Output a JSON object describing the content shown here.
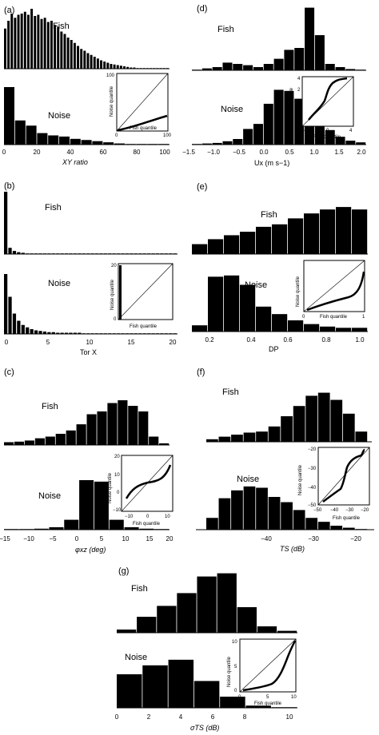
{
  "chart_data": [
    {
      "panel": "(a)",
      "type": "bar",
      "xlabel": "XY ratio",
      "xlim": [
        0,
        100
      ],
      "xticks": [
        "0",
        "20",
        "40",
        "60",
        "80",
        "100"
      ],
      "series": [
        {
          "name": "Fish",
          "values": [
            0.67,
            0.8,
            0.92,
            0.85,
            0.9,
            0.92,
            0.95,
            0.9,
            1.0,
            0.88,
            0.9,
            0.83,
            0.85,
            0.78,
            0.8,
            0.73,
            0.7,
            0.62,
            0.58,
            0.52,
            0.48,
            0.43,
            0.38,
            0.33,
            0.3,
            0.26,
            0.23,
            0.2,
            0.17,
            0.14,
            0.12,
            0.1,
            0.08,
            0.07,
            0.06,
            0.05,
            0.04,
            0.03,
            0.02,
            0.02,
            0.01,
            0.01,
            0.01,
            0.01,
            0.01,
            0.01,
            0.01,
            0.01,
            0.01,
            0.01
          ]
        },
        {
          "name": "Noise",
          "values": [
            1.0,
            0.42,
            0.33,
            0.2,
            0.16,
            0.14,
            0.1,
            0.08,
            0.06,
            0.04,
            0.02,
            0.01,
            0.01,
            0.01,
            0.01
          ]
        }
      ],
      "inset": {
        "xlabel": "Fish quantile",
        "ylabel": "Noise quantile",
        "xticks": [
          "0",
          "100"
        ],
        "yticks": [
          "100"
        ]
      }
    },
    {
      "panel": "(b)",
      "type": "bar",
      "xlabel": "Tor X",
      "xlim": [
        0,
        20
      ],
      "xticks": [
        "0",
        "5",
        "10",
        "15",
        "20"
      ],
      "series": [
        {
          "name": "Fish",
          "values": [
            1.0,
            0.1,
            0.05,
            0.03,
            0.02,
            0.01,
            0.01,
            0.01,
            0.01,
            0.01,
            0.01,
            0.01,
            0.01,
            0.01,
            0.01,
            0.01,
            0.01,
            0.01,
            0.01,
            0.01,
            0.01,
            0.01,
            0.01,
            0.01,
            0.01,
            0.01,
            0.01,
            0.01,
            0.01,
            0.01,
            0.01,
            0.01,
            0.01,
            0.01,
            0.01,
            0.01,
            0.01,
            0.01,
            0.01,
            0.01
          ]
        },
        {
          "name": "Noise",
          "values": [
            1.0,
            0.62,
            0.34,
            0.22,
            0.15,
            0.11,
            0.08,
            0.06,
            0.05,
            0.04,
            0.03,
            0.03,
            0.02,
            0.02,
            0.02,
            0.02,
            0.02,
            0.02,
            0.01,
            0.01,
            0.01,
            0.01,
            0.01,
            0.01,
            0.01,
            0.01,
            0.01,
            0.01,
            0.01,
            0.01,
            0.01,
            0.01,
            0.01,
            0.01,
            0.01,
            0.01,
            0.01,
            0.01,
            0.01,
            0.01
          ]
        }
      ],
      "inset": {
        "xlabel": "Fish quantile",
        "ylabel": "Noise quantile",
        "xticks": [],
        "yticks": [
          "20",
          "0"
        ]
      }
    },
    {
      "panel": "(c)",
      "type": "bar",
      "xlabel": "φxz (deg)",
      "xlim": [
        -15,
        20
      ],
      "xticks": [
        "−15",
        "−10",
        "−5",
        "0",
        "5",
        "10",
        "15",
        "20"
      ],
      "series": [
        {
          "name": "Fish",
          "values": [
            0.05,
            0.06,
            0.08,
            0.12,
            0.15,
            0.2,
            0.26,
            0.37,
            0.55,
            0.6,
            0.75,
            0.8,
            0.7,
            0.6,
            0.15,
            0.03
          ]
        },
        {
          "name": "Noise",
          "values": [
            0.01,
            0.01,
            0.02,
            0.05,
            0.2,
            1.0,
            0.97,
            0.2,
            0.05,
            0.02,
            0.01
          ]
        }
      ],
      "inset": {
        "xlabel": "Fish quantile",
        "ylabel": "Noise quantile",
        "xticks": [
          "−10",
          "0",
          "10"
        ],
        "yticks": [
          "20",
          "10",
          "0",
          "−10"
        ]
      }
    },
    {
      "panel": "(d)",
      "type": "bar",
      "xlabel": "Ux (m s−1)",
      "xlim": [
        -1.5,
        2.0
      ],
      "xticks": [
        "−1.5",
        "−1.0",
        "−0.5",
        "0.0",
        "0.5",
        "1.0",
        "1.5",
        "2.0"
      ],
      "series": [
        {
          "name": "Fish",
          "values": [
            0.01,
            0.03,
            0.05,
            0.12,
            0.1,
            0.08,
            0.05,
            0.1,
            0.18,
            0.32,
            0.35,
            0.98,
            0.55,
            0.1,
            0.05,
            0.02,
            0.01
          ]
        },
        {
          "name": "Noise",
          "values": [
            0.01,
            0.02,
            0.03,
            0.06,
            0.1,
            0.28,
            0.37,
            0.73,
            0.98,
            0.96,
            0.82,
            0.52,
            0.35,
            0.26,
            0.14,
            0.07,
            0.04
          ]
        }
      ],
      "inset": {
        "xlabel": "Fish quantile",
        "ylabel": "Noise quantile",
        "xticks": [
          "−4",
          "0",
          "4"
        ],
        "yticks": [
          "4",
          "2",
          "0",
          "−2",
          "−4"
        ]
      }
    },
    {
      "panel": "(e)",
      "type": "bar",
      "xlabel": "DP",
      "xlim": [
        0.1,
        1.0
      ],
      "xticks": [
        "0.2",
        "0.4",
        "0.6",
        "0.8",
        "1.0"
      ],
      "series": [
        {
          "name": "Fish",
          "values": [
            0.2,
            0.3,
            0.38,
            0.45,
            0.55,
            0.6,
            0.72,
            0.82,
            0.9,
            0.95,
            0.9
          ]
        },
        {
          "name": "Noise",
          "values": [
            0.1,
            0.88,
            0.9,
            0.75,
            0.4,
            0.28,
            0.18,
            0.12,
            0.08,
            0.06,
            0.06
          ]
        }
      ],
      "inset": {
        "xlabel": "Fish quantile",
        "ylabel": "Noise quantile",
        "xticks": [
          "0",
          "1"
        ],
        "yticks": []
      }
    },
    {
      "panel": "(f)",
      "type": "bar",
      "xlabel": "TS (dB)",
      "xlim": [
        -50,
        -20
      ],
      "xticks": [
        "−40",
        "−30",
        "−20"
      ],
      "series": [
        {
          "name": "Fish",
          "values": [
            0.05,
            0.1,
            0.14,
            0.18,
            0.2,
            0.3,
            0.5,
            0.7,
            0.9,
            0.96,
            0.82,
            0.55,
            0.2
          ]
        },
        {
          "name": "Noise",
          "values": [
            0.18,
            0.48,
            0.6,
            0.66,
            0.64,
            0.5,
            0.42,
            0.3,
            0.18,
            0.12,
            0.06,
            0.03,
            0.01
          ]
        }
      ],
      "inset": {
        "xlabel": "Fish quantile",
        "ylabel": "Noise quantile",
        "xticks": [
          "−50",
          "−40",
          "−30",
          "−20"
        ],
        "yticks": [
          "−20",
          "−30",
          "−40",
          "−50"
        ]
      }
    },
    {
      "panel": "(g)",
      "type": "bar",
      "xlabel": "σTS (dB)",
      "xlim": [
        0,
        10
      ],
      "xticks": [
        "0",
        "2",
        "4",
        "6",
        "8",
        "10"
      ],
      "series": [
        {
          "name": "Fish",
          "values": [
            0.05,
            0.25,
            0.42,
            0.62,
            0.88,
            0.93,
            0.4,
            0.1,
            0.03
          ]
        },
        {
          "name": "Noise",
          "values": [
            0.6,
            0.76,
            0.86,
            0.48,
            0.2,
            0.04,
            0.01
          ]
        }
      ],
      "inset": {
        "xlabel": "Fish quantile",
        "ylabel": "Noise quantile",
        "xticks": [
          "0",
          "5",
          "10"
        ],
        "yticks": [
          "10",
          "5",
          "0"
        ]
      }
    }
  ]
}
